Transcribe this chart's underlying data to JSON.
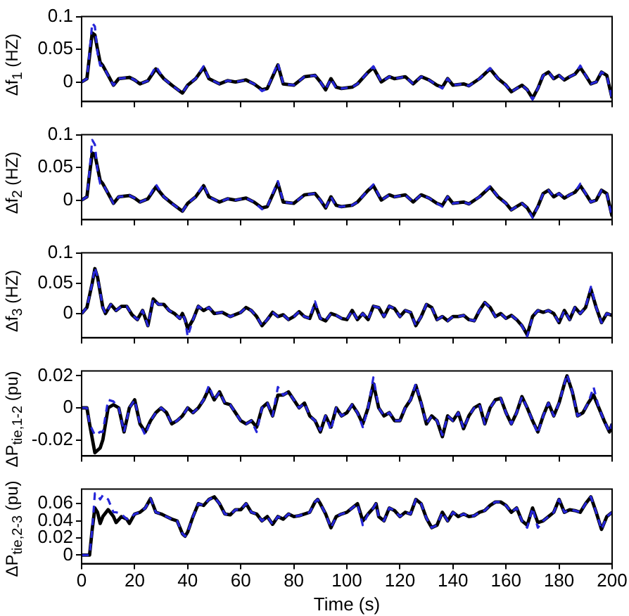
{
  "chart_data": [
    {
      "type": "line",
      "ylabel": "Δf$_{1}$ (HZ)",
      "tick_labels": "y",
      "xlim": [
        0,
        200
      ],
      "xticks": [
        0,
        20,
        40,
        60,
        80,
        100,
        120,
        140,
        160,
        180,
        200
      ],
      "ylim": [
        -0.03,
        0.1
      ],
      "yticks": [
        0,
        0.05,
        0.1
      ],
      "x": [
        0,
        2,
        3,
        4,
        5,
        6,
        7,
        8,
        10,
        12,
        14,
        18,
        20,
        22,
        25,
        28,
        31,
        34,
        38,
        40,
        43,
        46,
        48,
        52,
        55,
        58,
        62,
        65,
        68,
        70,
        74,
        76,
        80,
        84,
        88,
        90,
        92,
        94,
        96,
        98,
        102,
        104,
        108,
        110,
        113,
        116,
        118,
        122,
        125,
        128,
        131,
        134,
        136,
        138,
        140,
        144,
        146,
        150,
        154,
        157,
        160,
        162,
        164,
        166,
        168,
        170,
        172,
        174,
        176,
        178,
        180,
        182,
        184,
        186,
        188,
        190,
        192,
        194,
        196,
        198,
        200
      ],
      "series": [
        {
          "color": "#000000",
          "line_style": "solid",
          "values": [
            0,
            0.005,
            0.04,
            0.075,
            0.072,
            0.05,
            0.03,
            0.025,
            0.01,
            -0.005,
            0.005,
            0.007,
            0.003,
            -0.003,
            0.002,
            0.02,
            0.005,
            -0.005,
            -0.017,
            -0.005,
            0.005,
            0.022,
            0.005,
            -0.003,
            0.002,
            0,
            0.003,
            -0.003,
            -0.012,
            -0.01,
            0.026,
            -0.003,
            -0.005,
            0.008,
            0.01,
            0,
            -0.012,
            0.005,
            -0.008,
            -0.01,
            -0.008,
            -0.003,
            0.015,
            0.022,
            0,
            0.008,
            0.005,
            0.008,
            -0.003,
            0.008,
            0.003,
            -0.005,
            -0.008,
            0.005,
            -0.005,
            -0.003,
            -0.006,
            0.005,
            0.02,
            0.005,
            -0.005,
            -0.015,
            -0.01,
            -0.005,
            -0.012,
            -0.025,
            -0.01,
            0.01,
            0.015,
            0.005,
            0.01,
            0.003,
            0.008,
            0.012,
            0.022,
            0.01,
            -0.003,
            0,
            0.015,
            0.01,
            -0.025
          ]
        },
        {
          "color": "#2626d9",
          "line_style": "dashed",
          "values": [
            0,
            0.005,
            0.045,
            0.09,
            0.085,
            0.045,
            0.025,
            0.025,
            0.01,
            -0.005,
            0.005,
            0.007,
            0.003,
            -0.003,
            0.002,
            0.024,
            0.005,
            -0.005,
            -0.017,
            -0.005,
            0.005,
            0.024,
            0.005,
            -0.003,
            0.002,
            0,
            0.003,
            -0.003,
            -0.014,
            -0.01,
            0.029,
            -0.003,
            -0.005,
            0.008,
            0.01,
            0,
            -0.012,
            0.005,
            -0.01,
            -0.01,
            -0.008,
            -0.003,
            0.015,
            0.024,
            0,
            0.008,
            0.005,
            0.008,
            -0.003,
            0.008,
            0.003,
            -0.005,
            -0.01,
            0.005,
            -0.005,
            -0.003,
            -0.006,
            0.005,
            0.021,
            0.005,
            -0.005,
            -0.015,
            -0.01,
            -0.005,
            -0.012,
            -0.027,
            -0.01,
            0.01,
            0.015,
            0.005,
            0.01,
            0.003,
            0.008,
            0.012,
            0.025,
            0.01,
            -0.003,
            0,
            0.015,
            0.01,
            -0.027
          ]
        }
      ]
    },
    {
      "type": "line",
      "ylabel": "Δf$_{2}$ (HZ)",
      "tick_labels": "y",
      "xlim": [
        0,
        200
      ],
      "xticks": [
        0,
        20,
        40,
        60,
        80,
        100,
        120,
        140,
        160,
        180,
        200
      ],
      "ylim": [
        -0.03,
        0.1
      ],
      "yticks": [
        0,
        0.05,
        0.1
      ],
      "x": [
        0,
        2,
        3,
        4,
        5,
        6,
        7,
        8,
        10,
        12,
        14,
        18,
        20,
        22,
        25,
        28,
        31,
        34,
        38,
        40,
        43,
        46,
        48,
        52,
        55,
        58,
        62,
        65,
        68,
        70,
        74,
        76,
        80,
        84,
        88,
        90,
        92,
        94,
        96,
        98,
        102,
        104,
        108,
        110,
        113,
        116,
        118,
        122,
        125,
        128,
        131,
        134,
        136,
        138,
        140,
        144,
        146,
        150,
        154,
        157,
        160,
        162,
        164,
        166,
        168,
        170,
        172,
        174,
        176,
        178,
        180,
        182,
        184,
        186,
        188,
        190,
        192,
        194,
        196,
        198,
        200
      ],
      "series": [
        {
          "color": "#000000",
          "line_style": "solid",
          "values": [
            0,
            0.005,
            0.04,
            0.072,
            0.07,
            0.05,
            0.03,
            0.025,
            0.01,
            -0.005,
            0.005,
            0.007,
            0.003,
            -0.003,
            0.002,
            0.02,
            0.005,
            -0.005,
            -0.017,
            -0.005,
            0.005,
            0.022,
            0.005,
            -0.003,
            0.002,
            0,
            0.003,
            -0.003,
            -0.012,
            -0.01,
            0.026,
            -0.003,
            -0.005,
            0.008,
            0.01,
            0,
            -0.012,
            0.005,
            -0.008,
            -0.01,
            -0.008,
            -0.003,
            0.015,
            0.022,
            0,
            0.008,
            0.005,
            0.008,
            -0.003,
            0.008,
            0.003,
            -0.005,
            -0.008,
            0.005,
            -0.005,
            -0.003,
            -0.006,
            0.005,
            0.02,
            0.005,
            -0.005,
            -0.015,
            -0.01,
            -0.005,
            -0.012,
            -0.025,
            -0.01,
            0.01,
            0.015,
            0.005,
            0.01,
            0.003,
            0.008,
            0.012,
            0.022,
            0.01,
            -0.003,
            0,
            0.015,
            0.01,
            -0.025
          ]
        },
        {
          "color": "#2626d9",
          "line_style": "dashed",
          "values": [
            0,
            0.005,
            0.045,
            0.092,
            0.085,
            0.045,
            0.025,
            0.025,
            0.01,
            -0.005,
            0.005,
            0.007,
            0.003,
            -0.003,
            0.002,
            0.024,
            0.005,
            -0.005,
            -0.017,
            -0.005,
            0.005,
            0.024,
            0.005,
            -0.003,
            0.002,
            0,
            0.003,
            -0.003,
            -0.014,
            -0.01,
            0.029,
            -0.003,
            -0.005,
            0.008,
            0.01,
            0,
            -0.012,
            0.005,
            -0.01,
            -0.01,
            -0.008,
            -0.003,
            0.015,
            0.024,
            0,
            0.008,
            0.005,
            0.008,
            -0.003,
            0.008,
            0.003,
            -0.005,
            -0.01,
            0.005,
            -0.005,
            -0.003,
            -0.006,
            0.005,
            0.021,
            0.005,
            -0.005,
            -0.015,
            -0.01,
            -0.005,
            -0.012,
            -0.027,
            -0.01,
            0.01,
            0.015,
            0.005,
            0.01,
            0.003,
            0.008,
            0.012,
            0.025,
            0.01,
            -0.003,
            0,
            0.015,
            0.01,
            -0.027
          ]
        }
      ]
    },
    {
      "type": "line",
      "ylabel": "Δf$_{3}$ (HZ)",
      "tick_labels": "y",
      "xlim": [
        0,
        200
      ],
      "xticks": [
        0,
        20,
        40,
        60,
        80,
        100,
        120,
        140,
        160,
        180,
        200
      ],
      "ylim": [
        -0.04,
        0.1
      ],
      "yticks": [
        0,
        0.05,
        0.1
      ],
      "x": [
        0,
        2,
        4,
        5,
        6,
        8,
        9,
        11,
        13,
        15,
        17,
        19,
        21,
        23,
        25,
        27,
        29,
        31,
        33,
        35,
        37,
        38,
        39,
        40,
        42,
        44,
        46,
        48,
        50,
        53,
        56,
        60,
        62,
        64,
        66,
        68,
        70,
        72,
        74,
        76,
        78,
        80,
        82,
        84,
        86,
        88,
        90,
        92,
        94,
        96,
        98,
        100,
        102,
        104,
        106,
        108,
        110,
        112,
        114,
        116,
        118,
        120,
        122,
        124,
        126,
        128,
        130,
        132,
        134,
        136,
        138,
        140,
        142,
        144,
        146,
        148,
        150,
        152,
        154,
        156,
        158,
        160,
        162,
        164,
        166,
        168,
        170,
        172,
        174,
        176,
        178,
        180,
        182,
        184,
        186,
        188,
        190,
        192,
        194,
        196,
        198,
        200
      ],
      "series": [
        {
          "color": "#000000",
          "line_style": "solid",
          "values": [
            0,
            0.01,
            0.05,
            0.074,
            0.06,
            0.01,
            0,
            0.015,
            0.005,
            0.012,
            0.012,
            -0.002,
            -0.01,
            0.005,
            -0.02,
            0.024,
            0.015,
            0.015,
            0.005,
            0,
            -0.008,
            0,
            -0.01,
            -0.025,
            -0.01,
            0.012,
            0.005,
            0.01,
            0,
            0.002,
            -0.005,
            0.002,
            0.01,
            0.005,
            -0.005,
            -0.02,
            -0.01,
            0.002,
            -0.005,
            -0.002,
            -0.01,
            -0.005,
            0.003,
            -0.005,
            -0.008,
            0.015,
            -0.008,
            -0.012,
            0,
            -0.003,
            -0.008,
            -0.01,
            0.005,
            -0.01,
            0,
            -0.01,
            0.012,
            0.01,
            -0.005,
            0.012,
            0.008,
            -0.005,
            0.005,
            0.002,
            -0.02,
            -0.005,
            0.015,
            0.01,
            -0.01,
            -0.005,
            -0.012,
            -0.005,
            -0.005,
            -0.003,
            -0.01,
            -0.012,
            0.005,
            0.018,
            0.01,
            -0.005,
            0,
            -0.008,
            -0.003,
            -0.01,
            -0.02,
            -0.035,
            -0.005,
            0.005,
            0.002,
            0.005,
            0,
            -0.015,
            0.005,
            -0.01,
            0.01,
            0,
            0.01,
            0.04,
            0.01,
            -0.015,
            0,
            -0.003
          ]
        },
        {
          "color": "#2626d9",
          "line_style": "dashed",
          "values": [
            0,
            0.01,
            0.05,
            0.076,
            0.06,
            0.01,
            0,
            0.015,
            0.005,
            0.012,
            0.012,
            -0.002,
            -0.01,
            0.005,
            -0.02,
            0.024,
            0.015,
            0.015,
            0.005,
            0,
            -0.008,
            0,
            -0.01,
            -0.038,
            -0.01,
            0.012,
            0.005,
            0.01,
            0,
            0.002,
            -0.005,
            0.002,
            0.01,
            0.005,
            -0.005,
            -0.02,
            -0.01,
            0.002,
            -0.005,
            -0.002,
            -0.01,
            -0.005,
            0.003,
            -0.005,
            -0.008,
            0.02,
            -0.008,
            -0.012,
            0,
            -0.003,
            -0.008,
            -0.01,
            0.005,
            -0.01,
            0,
            -0.01,
            0.012,
            0.01,
            -0.005,
            0.012,
            0.008,
            -0.005,
            0.005,
            0.002,
            -0.02,
            -0.005,
            0.015,
            0.01,
            -0.01,
            -0.005,
            -0.012,
            -0.005,
            -0.005,
            -0.003,
            -0.01,
            -0.012,
            0.005,
            0.018,
            0.01,
            -0.005,
            0,
            -0.008,
            -0.003,
            -0.01,
            -0.02,
            -0.038,
            -0.005,
            0.005,
            0.002,
            0.005,
            0,
            -0.015,
            0.005,
            -0.01,
            0.01,
            0,
            0.01,
            0.044,
            0.01,
            -0.015,
            0,
            -0.003
          ]
        }
      ]
    },
    {
      "type": "line",
      "ylabel": "ΔP$_{tie,1-2}$ (pu)",
      "tick_labels": "y",
      "xlim": [
        0,
        200
      ],
      "xticks": [
        0,
        20,
        40,
        60,
        80,
        100,
        120,
        140,
        160,
        180,
        200
      ],
      "ylim": [
        -0.03,
        0.023
      ],
      "yticks": [
        -0.02,
        0,
        0.02
      ],
      "x": [
        0,
        2,
        3,
        5,
        7,
        8,
        10,
        12,
        14,
        16,
        18,
        20,
        22,
        24,
        26,
        28,
        30,
        32,
        34,
        36,
        38,
        40,
        42,
        44,
        46,
        48,
        50,
        52,
        54,
        56,
        58,
        60,
        62,
        64,
        66,
        68,
        70,
        72,
        74,
        76,
        78,
        80,
        82,
        84,
        86,
        88,
        90,
        92,
        94,
        96,
        98,
        100,
        102,
        104,
        106,
        108,
        110,
        112,
        114,
        116,
        118,
        120,
        122,
        124,
        126,
        128,
        130,
        132,
        134,
        136,
        138,
        140,
        142,
        144,
        146,
        148,
        150,
        152,
        154,
        156,
        158,
        160,
        162,
        164,
        166,
        168,
        170,
        172,
        174,
        176,
        178,
        180,
        182,
        183,
        185,
        187,
        189,
        191,
        193,
        195,
        197,
        199,
        200
      ],
      "series": [
        {
          "color": "#000000",
          "line_style": "solid",
          "values": [
            0,
            0,
            -0.01,
            -0.028,
            -0.025,
            -0.02,
            0,
            0.002,
            0,
            -0.015,
            0,
            0.005,
            -0.01,
            -0.015,
            -0.008,
            -0.003,
            0,
            -0.003,
            -0.01,
            -0.008,
            -0.005,
            0,
            -0.003,
            0,
            0.005,
            0.012,
            0.005,
            0.01,
            0.003,
            0.002,
            -0.003,
            -0.008,
            -0.01,
            -0.008,
            -0.012,
            0,
            0.003,
            -0.005,
            0.008,
            0.008,
            0.01,
            0.005,
            0,
            0.003,
            -0.005,
            -0.008,
            -0.015,
            -0.005,
            -0.012,
            0,
            -0.005,
            -0.003,
            0.002,
            -0.003,
            -0.01,
            0,
            0.015,
            0,
            -0.005,
            -0.003,
            -0.008,
            -0.008,
            0,
            0.005,
            0.014,
            0.003,
            -0.01,
            -0.005,
            -0.008,
            -0.018,
            -0.005,
            -0.008,
            -0.003,
            -0.013,
            -0.005,
            0,
            0.002,
            -0.01,
            0,
            0.005,
            0.006,
            -0.003,
            -0.01,
            -0.003,
            0.007,
            0,
            -0.008,
            -0.015,
            -0.005,
            0.003,
            -0.005,
            0.003,
            0.015,
            0.02,
            0.01,
            -0.005,
            -0.003,
            0.003,
            0.008,
            0,
            -0.008,
            -0.015,
            -0.01
          ]
        },
        {
          "color": "#2626d9",
          "line_style": "dashed",
          "values": [
            0,
            0,
            -0.01,
            -0.017,
            -0.015,
            -0.015,
            0.005,
            0.004,
            0,
            -0.015,
            0,
            0.005,
            -0.01,
            -0.017,
            -0.008,
            -0.003,
            0,
            -0.003,
            -0.01,
            -0.008,
            -0.005,
            0,
            -0.003,
            0,
            0.005,
            0.014,
            0.005,
            0.01,
            0.003,
            0.002,
            -0.003,
            -0.008,
            -0.01,
            -0.008,
            -0.015,
            0,
            0.003,
            -0.005,
            0.013,
            0.008,
            0.01,
            0.005,
            0,
            0.003,
            -0.005,
            -0.008,
            -0.014,
            -0.005,
            -0.014,
            0,
            -0.005,
            -0.003,
            0.002,
            -0.003,
            -0.012,
            0,
            0.019,
            0,
            -0.005,
            -0.003,
            -0.008,
            -0.008,
            0,
            0.005,
            0.015,
            0.003,
            -0.01,
            -0.005,
            -0.008,
            -0.017,
            -0.005,
            -0.008,
            -0.003,
            -0.013,
            -0.005,
            0,
            0.002,
            -0.01,
            0,
            0.005,
            0.006,
            -0.003,
            -0.01,
            -0.003,
            0.007,
            0,
            -0.008,
            -0.016,
            -0.005,
            0.003,
            -0.005,
            0.003,
            0.015,
            0.021,
            0.01,
            -0.005,
            -0.003,
            0.003,
            0.013,
            0,
            -0.008,
            -0.015,
            -0.01
          ]
        }
      ]
    },
    {
      "type": "line",
      "ylabel": "ΔP$_{tie,2-3}$ (pu)",
      "xlabel": "Time (s)",
      "xlim": [
        0,
        200
      ],
      "xticks": [
        0,
        20,
        40,
        60,
        80,
        100,
        120,
        140,
        160,
        180,
        200
      ],
      "ylim": [
        -0.01,
        0.077
      ],
      "yticks": [
        0,
        0.02,
        0.04,
        0.06
      ],
      "x": [
        0,
        3,
        4,
        5,
        6,
        7,
        8,
        10,
        12,
        13,
        15,
        17,
        18,
        20,
        22,
        24,
        26,
        28,
        30,
        32,
        34,
        36,
        38,
        39,
        40,
        42,
        44,
        46,
        48,
        50,
        52,
        54,
        56,
        58,
        60,
        62,
        64,
        66,
        68,
        70,
        72,
        74,
        76,
        78,
        80,
        82,
        84,
        86,
        88,
        89,
        90,
        92,
        94,
        96,
        98,
        100,
        102,
        104,
        106,
        108,
        110,
        111,
        112,
        114,
        116,
        118,
        120,
        122,
        124,
        126,
        128,
        130,
        132,
        134,
        136,
        138,
        140,
        142,
        144,
        146,
        148,
        150,
        152,
        154,
        156,
        158,
        160,
        162,
        164,
        166,
        168,
        170,
        172,
        174,
        176,
        178,
        180,
        182,
        184,
        186,
        188,
        190,
        192,
        194,
        196,
        198,
        200
      ],
      "series": [
        {
          "color": "#000000",
          "line_style": "solid",
          "values": [
            0,
            0,
            0.03,
            0.055,
            0.05,
            0.037,
            0.045,
            0.053,
            0.045,
            0.038,
            0.045,
            0.042,
            0.037,
            0.048,
            0.05,
            0.055,
            0.066,
            0.05,
            0.048,
            0.045,
            0.042,
            0.04,
            0.025,
            0.022,
            0.027,
            0.045,
            0.06,
            0.058,
            0.065,
            0.068,
            0.06,
            0.048,
            0.047,
            0.053,
            0.053,
            0.06,
            0.05,
            0.048,
            0.04,
            0.045,
            0.036,
            0.045,
            0.042,
            0.048,
            0.045,
            0.046,
            0.048,
            0.05,
            0.062,
            0.065,
            0.06,
            0.048,
            0.032,
            0.045,
            0.048,
            0.05,
            0.055,
            0.06,
            0.04,
            0.048,
            0.055,
            0.06,
            0.045,
            0.04,
            0.055,
            0.052,
            0.045,
            0.05,
            0.048,
            0.065,
            0.06,
            0.043,
            0.032,
            0.035,
            0.05,
            0.04,
            0.05,
            0.045,
            0.048,
            0.045,
            0.046,
            0.05,
            0.052,
            0.058,
            0.062,
            0.062,
            0.058,
            0.05,
            0.055,
            0.04,
            0.035,
            0.055,
            0.038,
            0.04,
            0.045,
            0.05,
            0.065,
            0.05,
            0.053,
            0.052,
            0.05,
            0.06,
            0.068,
            0.05,
            0.03,
            0.045,
            0.05
          ]
        },
        {
          "color": "#2626d9",
          "line_style": "dashed",
          "values": [
            0,
            0,
            0.03,
            0.072,
            0.07,
            0.065,
            0.07,
            0.065,
            0.05,
            0.05,
            0.048,
            0.042,
            0.042,
            0.048,
            0.05,
            0.055,
            0.066,
            0.05,
            0.048,
            0.045,
            0.042,
            0.04,
            0.025,
            0.022,
            0.027,
            0.045,
            0.06,
            0.058,
            0.065,
            0.068,
            0.06,
            0.048,
            0.047,
            0.053,
            0.053,
            0.06,
            0.05,
            0.048,
            0.04,
            0.045,
            0.036,
            0.045,
            0.042,
            0.048,
            0.045,
            0.046,
            0.048,
            0.05,
            0.062,
            0.065,
            0.06,
            0.048,
            0.032,
            0.045,
            0.048,
            0.05,
            0.055,
            0.06,
            0.035,
            0.048,
            0.055,
            0.06,
            0.045,
            0.04,
            0.055,
            0.052,
            0.045,
            0.05,
            0.048,
            0.065,
            0.06,
            0.043,
            0.032,
            0.035,
            0.05,
            0.04,
            0.05,
            0.045,
            0.048,
            0.045,
            0.046,
            0.05,
            0.052,
            0.058,
            0.062,
            0.062,
            0.058,
            0.05,
            0.055,
            0.04,
            0.032,
            0.055,
            0.032,
            0.04,
            0.045,
            0.05,
            0.065,
            0.05,
            0.053,
            0.052,
            0.05,
            0.06,
            0.068,
            0.05,
            0.03,
            0.045,
            0.05
          ]
        }
      ]
    }
  ]
}
